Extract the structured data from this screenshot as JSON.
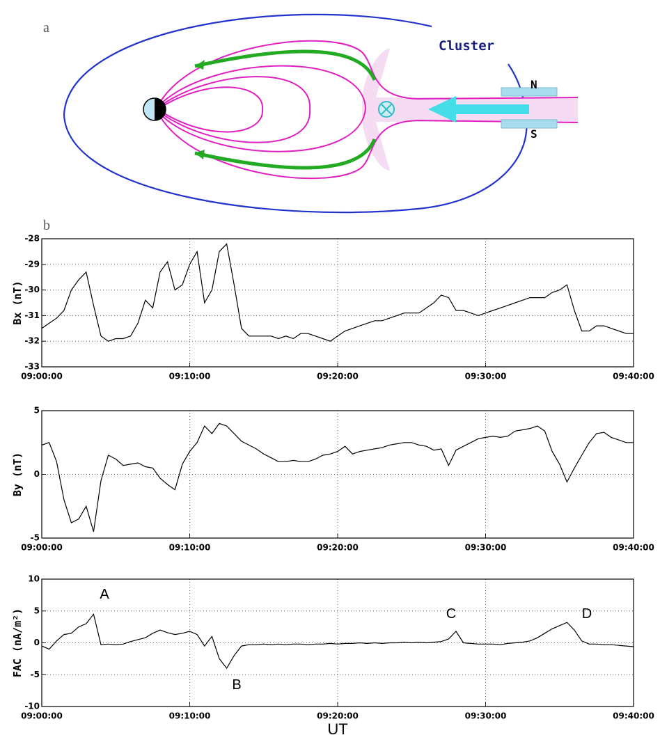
{
  "figure": {
    "panel_a": "a",
    "panel_b": "b",
    "spacecraft": "Cluster",
    "north": "N",
    "south": "S"
  },
  "chart_data": [
    {
      "type": "line",
      "ylabel": "Bx (nT)",
      "x": [
        "09:00:00",
        "09:00:30",
        "09:01:00",
        "09:01:30",
        "09:02:00",
        "09:02:30",
        "09:03:00",
        "09:03:30",
        "09:04:00",
        "09:04:30",
        "09:05:00",
        "09:05:30",
        "09:06:00",
        "09:06:30",
        "09:07:00",
        "09:07:30",
        "09:08:00",
        "09:08:30",
        "09:09:00",
        "09:09:30",
        "09:10:00",
        "09:10:30",
        "09:11:00",
        "09:11:30",
        "09:12:00",
        "09:12:30",
        "09:13:00",
        "09:13:30",
        "09:14:00",
        "09:14:30",
        "09:15:00",
        "09:15:30",
        "09:16:00",
        "09:16:30",
        "09:17:00",
        "09:17:30",
        "09:18:00",
        "09:18:30",
        "09:19:00",
        "09:19:30",
        "09:20:00",
        "09:20:30",
        "09:21:00",
        "09:21:30",
        "09:22:00",
        "09:22:30",
        "09:23:00",
        "09:23:30",
        "09:24:00",
        "09:24:30",
        "09:25:00",
        "09:25:30",
        "09:26:00",
        "09:26:30",
        "09:27:00",
        "09:27:30",
        "09:28:00",
        "09:28:30",
        "09:29:00",
        "09:29:30",
        "09:30:00",
        "09:30:30",
        "09:31:00",
        "09:31:30",
        "09:32:00",
        "09:32:30",
        "09:33:00",
        "09:33:30",
        "09:34:00",
        "09:34:30",
        "09:35:00",
        "09:35:30",
        "09:36:00",
        "09:36:30",
        "09:37:00",
        "09:37:30",
        "09:38:00",
        "09:38:30",
        "09:39:00",
        "09:39:30",
        "09:40:00"
      ],
      "values": [
        -31.5,
        -31.3,
        -31.1,
        -30.8,
        -30.0,
        -29.6,
        -29.3,
        -30.6,
        -31.8,
        -32.0,
        -31.9,
        -31.9,
        -31.8,
        -31.3,
        -30.4,
        -30.7,
        -29.3,
        -28.9,
        -30.0,
        -29.8,
        -29.0,
        -28.5,
        -30.5,
        -30.0,
        -28.5,
        -28.2,
        -29.8,
        -31.5,
        -31.8,
        -31.8,
        -31.8,
        -31.8,
        -31.9,
        -31.8,
        -31.9,
        -31.7,
        -31.7,
        -31.8,
        -31.9,
        -32.0,
        -31.8,
        -31.6,
        -31.5,
        -31.4,
        -31.3,
        -31.2,
        -31.2,
        -31.1,
        -31.0,
        -30.9,
        -30.9,
        -30.9,
        -30.7,
        -30.5,
        -30.2,
        -30.3,
        -30.8,
        -30.8,
        -30.9,
        -31.0,
        -30.9,
        -30.8,
        -30.7,
        -30.6,
        -30.5,
        -30.4,
        -30.3,
        -30.3,
        -30.3,
        -30.1,
        -30.0,
        -29.8,
        -30.8,
        -31.6,
        -31.6,
        -31.4,
        -31.4,
        -31.5,
        -31.6,
        -31.7,
        -31.7
      ],
      "color": "#000000",
      "xlim": [
        "09:00:00",
        "09:40:00"
      ],
      "xticks": [
        "09:00:00",
        "09:10:00",
        "09:20:00",
        "09:30:00",
        "09:40:00"
      ],
      "ylim": [
        -33,
        -28
      ],
      "yticks": [
        -33,
        -32,
        -31,
        -30,
        -29,
        -28
      ],
      "grid": true
    },
    {
      "type": "line",
      "ylabel": "By (nT)",
      "x": [
        "09:00:00",
        "09:00:30",
        "09:01:00",
        "09:01:30",
        "09:02:00",
        "09:02:30",
        "09:03:00",
        "09:03:30",
        "09:04:00",
        "09:04:30",
        "09:05:00",
        "09:05:30",
        "09:06:00",
        "09:06:30",
        "09:07:00",
        "09:07:30",
        "09:08:00",
        "09:08:30",
        "09:09:00",
        "09:09:30",
        "09:10:00",
        "09:10:30",
        "09:11:00",
        "09:11:30",
        "09:12:00",
        "09:12:30",
        "09:13:00",
        "09:13:30",
        "09:14:00",
        "09:14:30",
        "09:15:00",
        "09:15:30",
        "09:16:00",
        "09:16:30",
        "09:17:00",
        "09:17:30",
        "09:18:00",
        "09:18:30",
        "09:19:00",
        "09:19:30",
        "09:20:00",
        "09:20:30",
        "09:21:00",
        "09:21:30",
        "09:22:00",
        "09:22:30",
        "09:23:00",
        "09:23:30",
        "09:24:00",
        "09:24:30",
        "09:25:00",
        "09:25:30",
        "09:26:00",
        "09:26:30",
        "09:27:00",
        "09:27:30",
        "09:28:00",
        "09:28:30",
        "09:29:00",
        "09:29:30",
        "09:30:00",
        "09:30:30",
        "09:31:00",
        "09:31:30",
        "09:32:00",
        "09:32:30",
        "09:33:00",
        "09:33:30",
        "09:34:00",
        "09:34:30",
        "09:35:00",
        "09:35:30",
        "09:36:00",
        "09:36:30",
        "09:37:00",
        "09:37:30",
        "09:38:00",
        "09:38:30",
        "09:39:00",
        "09:39:30",
        "09:40:00"
      ],
      "values": [
        2.3,
        2.5,
        1.0,
        -2.0,
        -3.8,
        -3.5,
        -2.5,
        -4.5,
        -0.5,
        1.5,
        1.2,
        0.7,
        0.8,
        0.9,
        0.6,
        0.5,
        -0.3,
        -0.8,
        -1.2,
        0.8,
        1.8,
        2.5,
        3.8,
        3.2,
        4.0,
        3.8,
        3.2,
        2.6,
        2.3,
        2.0,
        1.6,
        1.3,
        1.0,
        1.0,
        1.1,
        1.0,
        1.0,
        1.2,
        1.5,
        1.6,
        1.8,
        2.2,
        1.6,
        1.8,
        1.9,
        2.0,
        2.1,
        2.3,
        2.4,
        2.5,
        2.5,
        2.3,
        2.2,
        1.9,
        2.0,
        0.7,
        1.9,
        2.2,
        2.5,
        2.8,
        2.9,
        3.0,
        2.9,
        3.0,
        3.4,
        3.5,
        3.6,
        3.8,
        3.4,
        1.8,
        0.8,
        -0.6,
        0.5,
        1.5,
        2.5,
        3.2,
        3.3,
        2.9,
        2.7,
        2.5,
        2.5
      ],
      "color": "#000000",
      "xlim": [
        "09:00:00",
        "09:40:00"
      ],
      "xticks": [
        "09:00:00",
        "09:10:00",
        "09:20:00",
        "09:30:00",
        "09:40:00"
      ],
      "ylim": [
        -5,
        5
      ],
      "yticks": [
        -5,
        0,
        5
      ],
      "grid": true
    },
    {
      "type": "line",
      "ylabel": "FAC (nA/m²)",
      "xlabel": "UT",
      "annotations": [
        "A",
        "B",
        "C",
        "D"
      ],
      "x": [
        "09:00:00",
        "09:00:30",
        "09:01:00",
        "09:01:30",
        "09:02:00",
        "09:02:30",
        "09:03:00",
        "09:03:30",
        "09:04:00",
        "09:04:30",
        "09:05:00",
        "09:05:30",
        "09:06:00",
        "09:06:30",
        "09:07:00",
        "09:07:30",
        "09:08:00",
        "09:08:30",
        "09:09:00",
        "09:09:30",
        "09:10:00",
        "09:10:30",
        "09:11:00",
        "09:11:30",
        "09:12:00",
        "09:12:30",
        "09:13:00",
        "09:13:30",
        "09:14:00",
        "09:14:30",
        "09:15:00",
        "09:15:30",
        "09:16:00",
        "09:16:30",
        "09:17:00",
        "09:17:30",
        "09:18:00",
        "09:18:30",
        "09:19:00",
        "09:19:30",
        "09:20:00",
        "09:20:30",
        "09:21:00",
        "09:21:30",
        "09:22:00",
        "09:22:30",
        "09:23:00",
        "09:23:30",
        "09:24:00",
        "09:24:30",
        "09:25:00",
        "09:25:30",
        "09:26:00",
        "09:26:30",
        "09:27:00",
        "09:27:30",
        "09:28:00",
        "09:28:30",
        "09:29:00",
        "09:29:30",
        "09:30:00",
        "09:30:30",
        "09:31:00",
        "09:31:30",
        "09:32:00",
        "09:32:30",
        "09:33:00",
        "09:33:30",
        "09:34:00",
        "09:34:30",
        "09:35:00",
        "09:35:30",
        "09:36:00",
        "09:36:30",
        "09:37:00",
        "09:37:30",
        "09:38:00",
        "09:38:30",
        "09:39:00",
        "09:39:30",
        "09:40:00"
      ],
      "values": [
        -0.5,
        -1.0,
        0.3,
        1.3,
        1.5,
        2.5,
        3.0,
        4.5,
        -0.3,
        -0.2,
        -0.3,
        -0.2,
        0.2,
        0.5,
        0.8,
        1.5,
        2.0,
        1.6,
        1.3,
        1.5,
        1.8,
        1.3,
        -0.5,
        1.0,
        -2.5,
        -4.0,
        -2.0,
        -0.5,
        -0.3,
        -0.3,
        -0.2,
        -0.3,
        -0.2,
        -0.3,
        -0.2,
        -0.2,
        -0.3,
        -0.2,
        -0.2,
        -0.1,
        -0.2,
        -0.1,
        -0.1,
        0.0,
        -0.1,
        0.0,
        -0.1,
        0.0,
        0.0,
        0.1,
        0.0,
        0.1,
        0.0,
        0.1,
        0.2,
        0.6,
        1.8,
        0.0,
        -0.1,
        -0.2,
        -0.2,
        -0.2,
        -0.3,
        -0.1,
        0.0,
        0.1,
        0.3,
        0.8,
        1.5,
        2.2,
        2.7,
        3.2,
        2.0,
        0.3,
        -0.2,
        -0.2,
        -0.3,
        -0.3,
        -0.4,
        -0.5,
        -0.6
      ],
      "color": "#000000",
      "xlim": [
        "09:00:00",
        "09:40:00"
      ],
      "xticks": [
        "09:00:00",
        "09:10:00",
        "09:20:00",
        "09:30:00",
        "09:40:00"
      ],
      "ylim": [
        -10,
        10
      ],
      "yticks": [
        -10,
        -5,
        0,
        5,
        10
      ],
      "grid": true
    }
  ]
}
